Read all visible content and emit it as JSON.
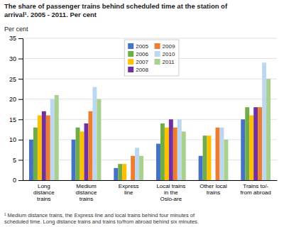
{
  "chart_data": {
    "type": "bar",
    "title": "The share of passenger trains behind scheduled time at the station of\narrival¹. 2005 - 2011. Per cent",
    "ylabel": "Per cent",
    "footnote": "¹ Medium distance trains, the Express line and local trains behind four minutes of\nscheduled time. Long distance trains and trains to/from abroad behind six minutes.",
    "categories": [
      "Long\ndistance\ntrains",
      "Medium\ndistance\ntrains",
      "Express\nline",
      "Local trains\nin the\nOslo-are",
      "Other local\ntrains",
      "Trains to/-\nfrom abroad"
    ],
    "series": [
      {
        "name": "2005",
        "color": "#4472c4",
        "values": [
          10,
          10,
          3,
          9,
          6,
          15
        ]
      },
      {
        "name": "2006",
        "color": "#70ad47",
        "values": [
          13,
          13,
          4,
          14,
          11,
          18
        ]
      },
      {
        "name": "2007",
        "color": "#ffc000",
        "values": [
          16,
          12,
          4,
          13,
          11,
          16
        ]
      },
      {
        "name": "2008",
        "color": "#7030a0",
        "values": [
          17,
          14,
          0,
          15,
          0,
          18
        ]
      },
      {
        "name": "2009",
        "color": "#ed7d31",
        "values": [
          16,
          17,
          6,
          13,
          13,
          18
        ]
      },
      {
        "name": "2010",
        "color": "#bdd7ee",
        "values": [
          20,
          23,
          8,
          15,
          13,
          29
        ]
      },
      {
        "name": "2011",
        "color": "#a9d18e",
        "values": [
          21,
          20,
          6,
          12,
          10,
          25
        ]
      }
    ],
    "ylim": [
      0,
      35
    ],
    "yticks": [
      0,
      5,
      10,
      15,
      20,
      25,
      30,
      35
    ],
    "grid": true,
    "legend": "top"
  }
}
